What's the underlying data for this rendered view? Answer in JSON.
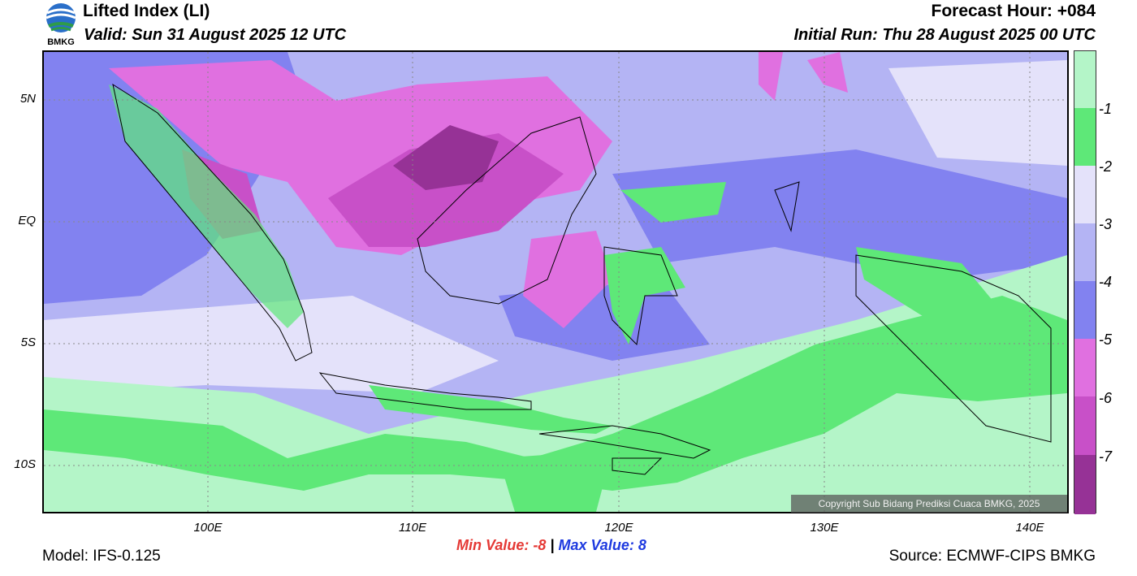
{
  "header": {
    "title": "Lifted Index (LI)",
    "valid": "Valid: Sun 31 August 2025 12 UTC",
    "forecast_hour": "Forecast Hour: +084",
    "initial_run": "Initial Run: Thu 28 August 2025 00 UTC"
  },
  "logo": {
    "text": "BMKG"
  },
  "axes": {
    "lat_labels": [
      "5N",
      "EQ",
      "5S",
      "10S"
    ],
    "lon_labels": [
      "100E",
      "110E",
      "120E",
      "130E",
      "140E"
    ]
  },
  "colorbar": {
    "labels": [
      "-1",
      "-2",
      "-3",
      "-4",
      "-5",
      "-6",
      "-7"
    ],
    "colors": [
      "#b4f5c8",
      "#5ee878",
      "#e4e2fa",
      "#b4b4f4",
      "#8282f0",
      "#e070e0",
      "#c850c8",
      "#963296"
    ]
  },
  "stats": {
    "min_label": "Min Value:",
    "min_value": "-8",
    "separator": "|",
    "max_label": "Max Value:",
    "max_value": "8"
  },
  "footer": {
    "model": "Model: IFS-0.125",
    "source": "Source: ECMWF-CIPS BMKG",
    "copyright": "Copyright Sub Bidang Prediksi Cuaca BMKG, 2025"
  }
}
